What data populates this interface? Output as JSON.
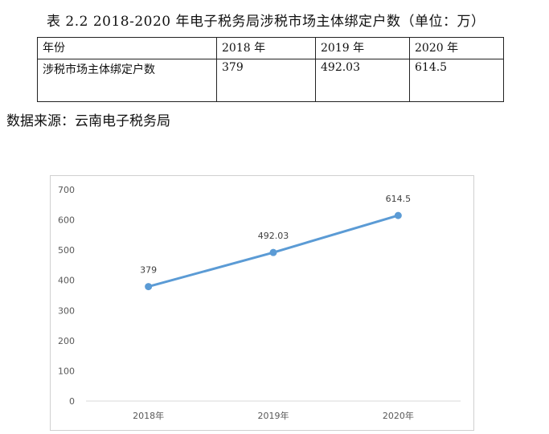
{
  "caption": "表 2.2 2018-2020 年电子税务局涉税市场主体绑定户数（单位：万）",
  "table": {
    "header": [
      "年份",
      "2018 年",
      "2019 年",
      "2020 年"
    ],
    "row": [
      "涉税市场主体绑定户数",
      "379",
      "492.03",
      "614.5"
    ]
  },
  "source": "数据来源：云南电子税务局",
  "chart_data": {
    "type": "line",
    "title": "",
    "xlabel": "",
    "ylabel": "",
    "categories": [
      "2018年",
      "2019年",
      "2020年"
    ],
    "series": [
      {
        "values": [
          379,
          492.03,
          614.5
        ],
        "labels": [
          "379",
          "492.03",
          "614.5"
        ]
      }
    ],
    "ylim": [
      0,
      700
    ],
    "yticks": [
      0,
      100,
      200,
      300,
      400,
      500,
      600,
      700
    ],
    "ytick_labels": [
      "0",
      "100",
      "200",
      "300",
      "400",
      "500",
      "600",
      "700"
    ],
    "grid": false,
    "line_color": "#5b9bd5"
  }
}
